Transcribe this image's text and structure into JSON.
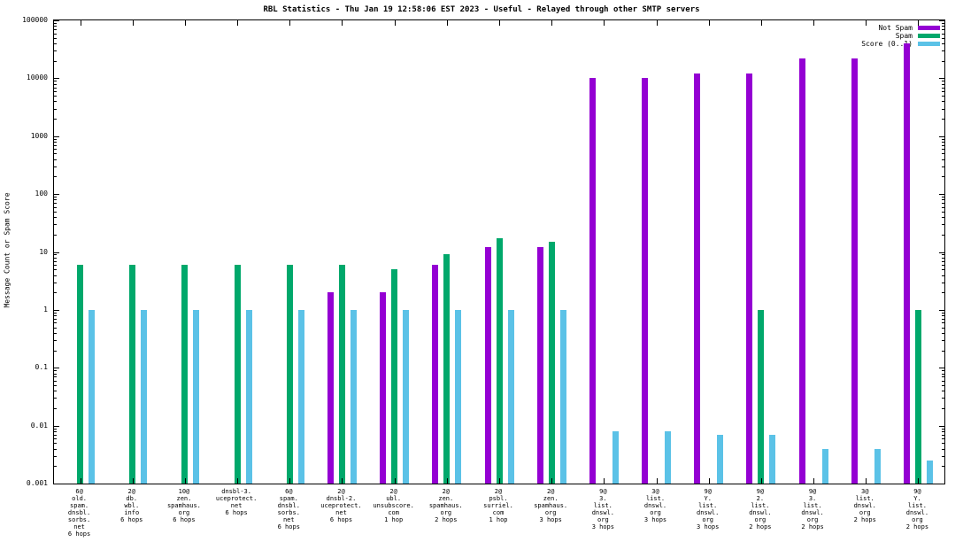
{
  "title": "RBL Statistics - Thu Jan 19 12:58:06 EST 2023 - Useful - Relayed through other SMTP servers",
  "ylabel": "Message Count or Spam Score",
  "legend": [
    {
      "label": "Not Spam",
      "color": "#9400d3"
    },
    {
      "label": "Spam",
      "color": "#00a86b"
    },
    {
      "label": "Score (0..1)",
      "color": "#5bc2e7"
    }
  ],
  "chart_data": {
    "type": "bar",
    "scale": "log",
    "ylim": [
      0.001,
      100000
    ],
    "yticks": [
      "100000",
      "10000",
      "1000",
      "100",
      "10",
      "1",
      "0.1",
      "0.01",
      "0.001"
    ],
    "grid": false,
    "legend_position": "top-right",
    "categories": [
      [
        "6@",
        "old.",
        "spam.",
        "dnsbl.",
        "sorbs.",
        "net",
        "6 hops"
      ],
      [
        "2@",
        "db.",
        "wbl.",
        "info",
        "6 hops"
      ],
      [
        "10@",
        "zen.",
        "spamhaus.",
        "org",
        "6 hops"
      ],
      [
        "dnsbl-3.",
        "uceprotect.",
        "net",
        "6 hops"
      ],
      [
        "6@",
        "spam.",
        "dnsbl.",
        "sorbs.",
        "net",
        "6 hops"
      ],
      [
        "2@",
        "dnsbl-2.",
        "uceprotect.",
        "net",
        "6 hops"
      ],
      [
        "2@",
        "ubl.",
        "unsubscore.",
        "com",
        "1 hop"
      ],
      [
        "2@",
        "zen.",
        "spamhaus.",
        "org",
        "2 hops"
      ],
      [
        "2@",
        "psbl.",
        "surriel.",
        "com",
        "1 hop"
      ],
      [
        "2@",
        "zen.",
        "spamhaus.",
        "org",
        "3 hops"
      ],
      [
        "9@",
        "3.",
        "list.",
        "dnswl.",
        "org",
        "3 hops"
      ],
      [
        "3@",
        "list.",
        "dnswl.",
        "org",
        "3 hops"
      ],
      [
        "9@",
        "Y.",
        "list.",
        "dnswl.",
        "org",
        "3 hops"
      ],
      [
        "9@",
        "2.",
        "list.",
        "dnswl.",
        "org",
        "2 hops"
      ],
      [
        "9@",
        "3.",
        "list.",
        "dnswl.",
        "org",
        "2 hops"
      ],
      [
        "3@",
        "list.",
        "dnswl.",
        "org",
        "2 hops"
      ],
      [
        "9@",
        "Y.",
        "list.",
        "dnswl.",
        "org",
        "2 hops"
      ]
    ],
    "series": [
      {
        "name": "Not Spam",
        "color": "#9400d3",
        "values": [
          null,
          null,
          null,
          null,
          null,
          2,
          2,
          6,
          12,
          12,
          10000,
          10000,
          12000,
          12000,
          22000,
          22000,
          40000
        ]
      },
      {
        "name": "Spam",
        "color": "#00a86b",
        "values": [
          6,
          6,
          6,
          6,
          6,
          6,
          5,
          9,
          17,
          15,
          null,
          null,
          null,
          1,
          null,
          null,
          1
        ]
      },
      {
        "name": "Score (0..1)",
        "color": "#5bc2e7",
        "values": [
          1,
          1,
          1,
          1,
          1,
          1,
          1,
          1,
          1,
          1,
          0.008,
          0.008,
          0.007,
          0.007,
          0.004,
          0.004,
          0.0025
        ]
      }
    ]
  }
}
